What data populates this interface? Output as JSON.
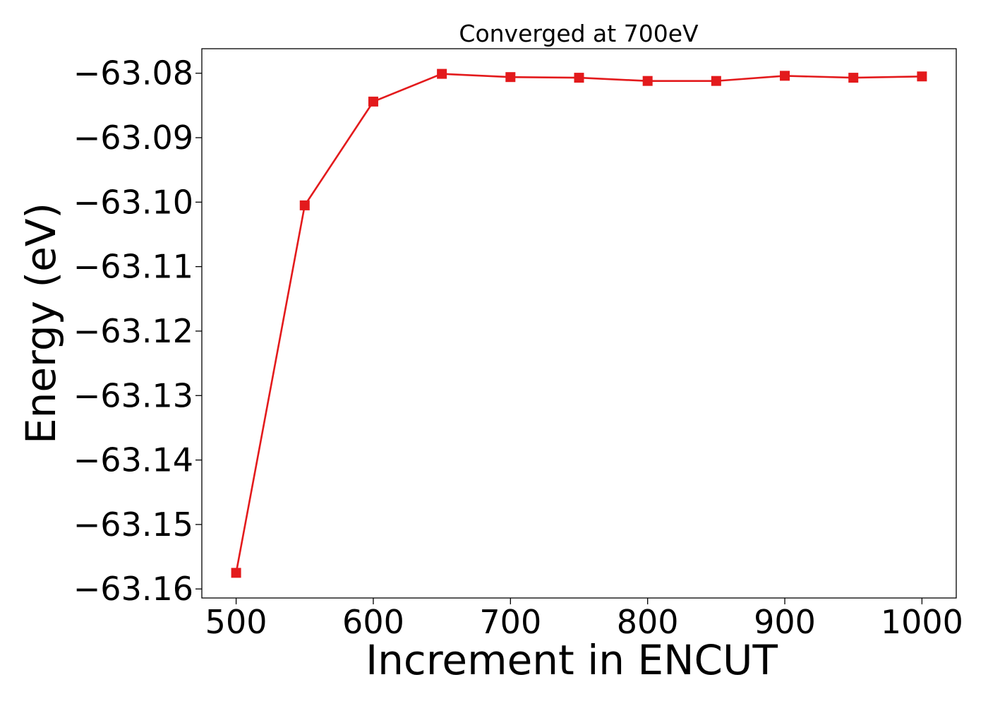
{
  "chart_data": {
    "type": "line",
    "title": "Converged at 700eV",
    "xlabel": "Increment in ENCUT",
    "ylabel": "Energy (eV)",
    "x": [
      500,
      550,
      600,
      650,
      700,
      750,
      800,
      850,
      900,
      950,
      1000
    ],
    "series": [
      {
        "values": [
          -63.1575,
          -63.1005,
          -63.0844,
          -63.0801,
          -63.0806,
          -63.0807,
          -63.0812,
          -63.0812,
          -63.0804,
          -63.0807,
          -63.0805
        ],
        "color": "#e31a1c",
        "marker": "square"
      }
    ],
    "xticks": [
      500,
      600,
      700,
      800,
      900,
      1000
    ],
    "xtick_labels": [
      "500",
      "600",
      "700",
      "800",
      "900",
      "1000"
    ],
    "yticks": [
      -63.16,
      -63.15,
      -63.14,
      -63.13,
      -63.12,
      -63.11,
      -63.1,
      -63.09,
      -63.08
    ],
    "ytick_labels": [
      "−63.16",
      "−63.15",
      "−63.14",
      "−63.13",
      "−63.12",
      "−63.11",
      "−63.10",
      "−63.09",
      "−63.08"
    ],
    "xlim": [
      475,
      1025
    ],
    "ylim": [
      -63.1614,
      -63.0762
    ],
    "grid": false,
    "legend": "none"
  }
}
